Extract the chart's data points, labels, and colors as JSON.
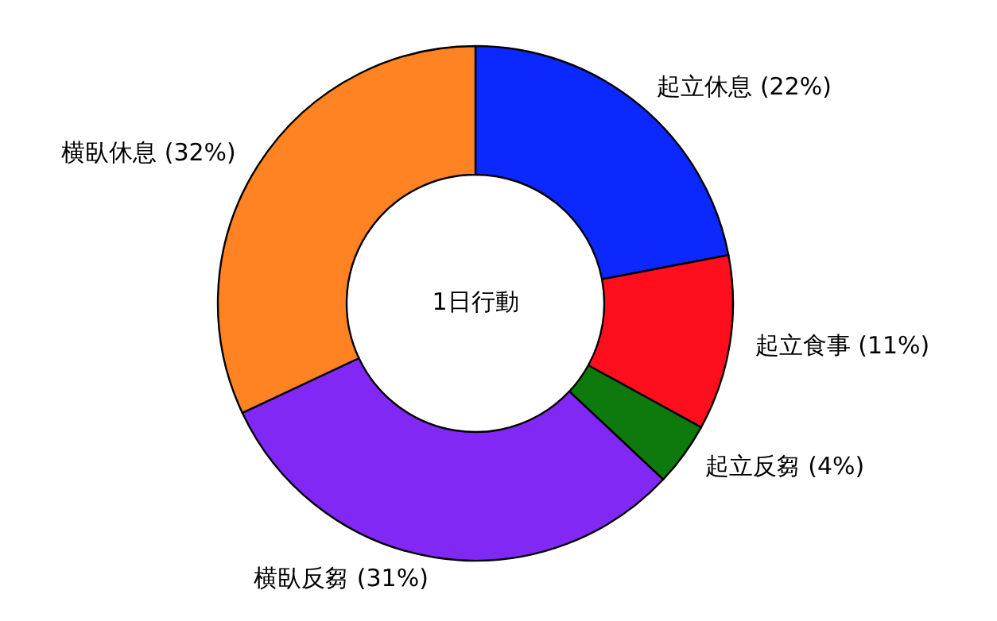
{
  "chart_data": {
    "type": "donut",
    "title": "1日行動",
    "categories": [
      "起立休息",
      "起立食事",
      "起立反芻",
      "横臥反芻",
      "横臥休息"
    ],
    "values": [
      22,
      11,
      4,
      31,
      32
    ],
    "value_labels": [
      "(22%)",
      "(11%)",
      "(4%)",
      "(31%)",
      "(32%)"
    ],
    "colors": [
      "#0a28ff",
      "#ff0f1e",
      "#0e7a0e",
      "#8228f5",
      "#ff8223"
    ]
  }
}
